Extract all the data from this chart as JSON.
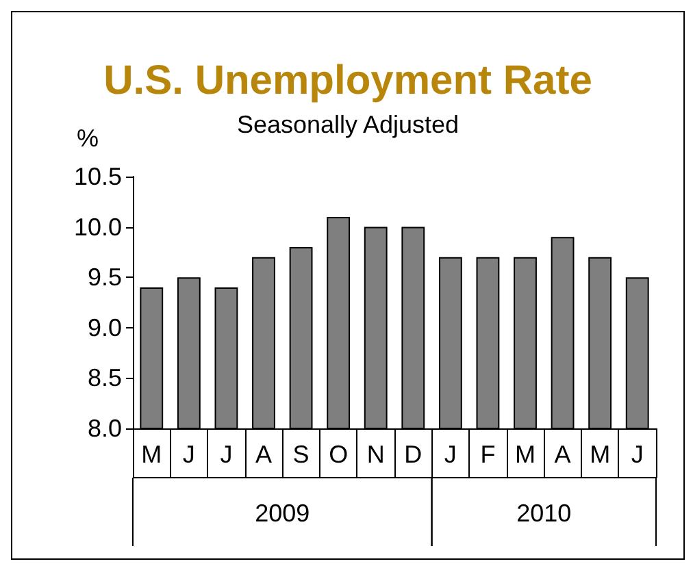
{
  "chart_data": {
    "type": "bar",
    "title": "U.S. Unemployment Rate",
    "subtitle": "Seasonally Adjusted",
    "ylabel": "%",
    "categories": [
      "M",
      "J",
      "J",
      "A",
      "S",
      "O",
      "N",
      "D",
      "J",
      "F",
      "M",
      "A",
      "M",
      "J"
    ],
    "values": [
      9.4,
      9.5,
      9.4,
      9.7,
      9.8,
      10.1,
      10.0,
      10.0,
      9.7,
      9.7,
      9.7,
      9.9,
      9.7,
      9.5
    ],
    "color": "#7f7f7f",
    "ylim": [
      8.0,
      10.5
    ],
    "yticks": [
      {
        "value": 8,
        "label": "8.0"
      },
      {
        "value": 8.5,
        "label": "8.5"
      },
      {
        "value": 9,
        "label": "9.0"
      },
      {
        "value": 9.5,
        "label": "9.5"
      },
      {
        "value": 10,
        "label": "10.0"
      },
      {
        "value": 10.5,
        "label": "10.5"
      }
    ],
    "grid": false,
    "annotations": [
      "2009",
      "2010"
    ]
  }
}
